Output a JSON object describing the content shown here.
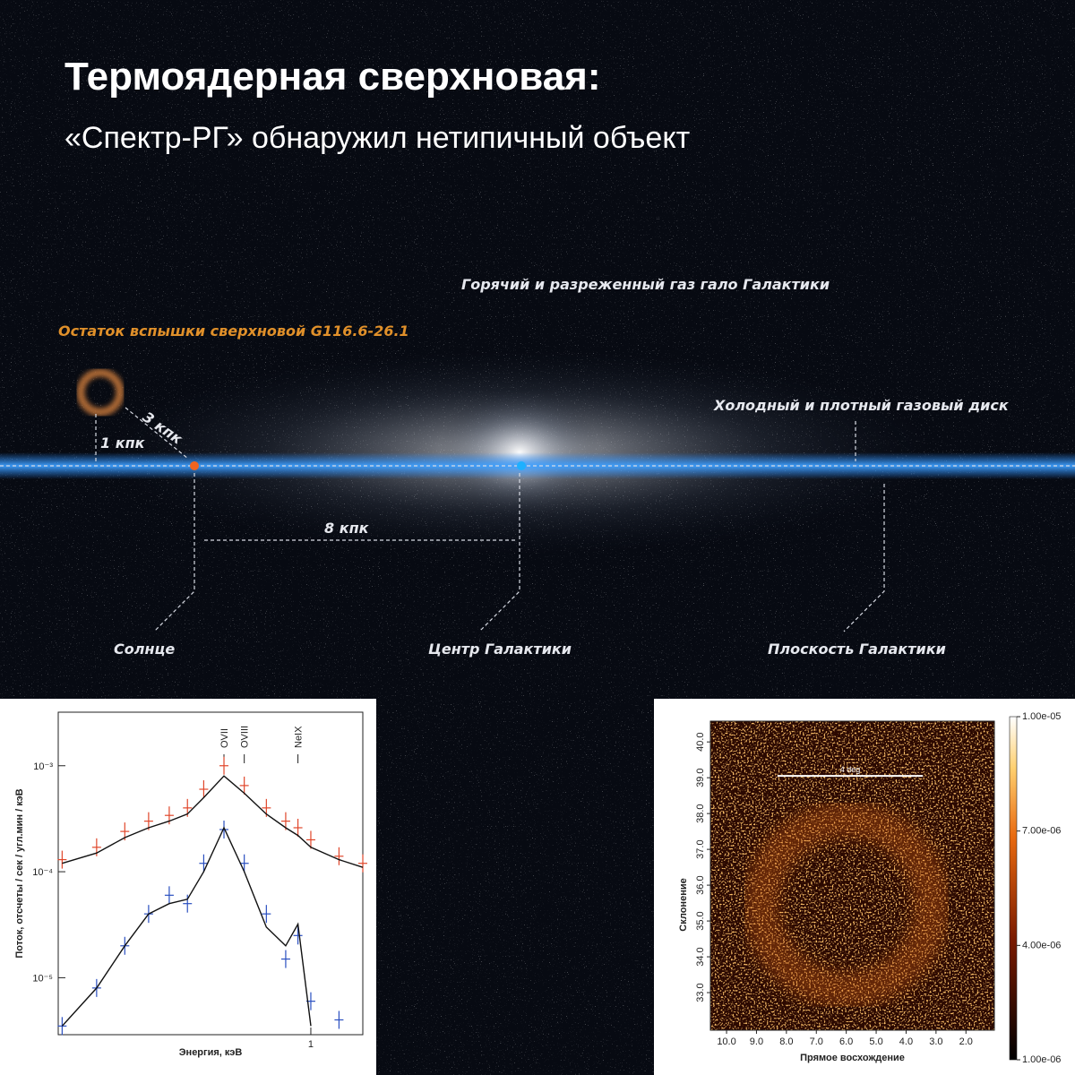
{
  "header": {
    "title": "Термоядерная сверхновая:",
    "subtitle": "«Спектр-РГ» обнаружил нетипичный объект"
  },
  "diagram": {
    "labels": {
      "halo": "Горячий и разреженный газ гало Галактики",
      "remnant": "Остаток вспышки сверхновой G116.6-26.1",
      "disk": "Холодный и плотный газовый диск",
      "sun": "Солнце",
      "center": "Центр Галактики",
      "plane": "Плоскость Галактики",
      "dist_1": "1 кпк",
      "dist_3": "3 кпк",
      "dist_8": "8 кпк"
    }
  },
  "chart_data": [
    {
      "type": "line",
      "x_label": "Энергия, кэВ",
      "y_label": "Поток, отсчеты / сек / угл.мин / кэВ",
      "x_log": true,
      "y_log": true,
      "xlim": [
        0.195,
        1.4
      ],
      "ylim": [
        2.9e-06,
        0.0032
      ],
      "xticks": [
        1
      ],
      "yticks": [
        {
          "value": 0.001,
          "label": "10⁻³"
        },
        {
          "value": 0.0001,
          "label": "10⁻⁴"
        },
        {
          "value": 1e-05,
          "label": "10⁻⁵"
        }
      ],
      "annotations": [
        {
          "label": "OVII",
          "x": 0.57
        },
        {
          "label": "OVIII",
          "x": 0.65
        },
        {
          "label": "NeIX",
          "x": 0.92
        }
      ],
      "x": [
        0.2,
        0.25,
        0.3,
        0.35,
        0.4,
        0.45,
        0.5,
        0.57,
        0.65,
        0.75,
        0.85,
        0.92,
        1.0,
        1.2,
        1.4
      ],
      "series": [
        {
          "color": "#e0462a",
          "mode": "points",
          "values": [
            0.00013,
            0.00017,
            0.00024,
            0.0003,
            0.00034,
            0.0004,
            0.0006,
            0.001,
            0.00065,
            0.0004,
            0.0003,
            0.00026,
            0.0002,
            0.00014,
            0.00012
          ]
        },
        {
          "color": "#111111",
          "mode": "line",
          "values": [
            0.00012,
            0.00015,
            0.00021,
            0.00026,
            0.0003,
            0.00035,
            0.0005,
            0.0008,
            0.00055,
            0.00035,
            0.00026,
            0.00022,
            0.00017,
            0.00013,
            0.00011
          ]
        },
        {
          "color": "#2a4fc0",
          "mode": "points",
          "values": [
            3.5e-06,
            8e-06,
            2e-05,
            4e-05,
            6e-05,
            5e-05,
            0.00012,
            0.00025,
            0.00012,
            4e-05,
            1.5e-05,
            2.5e-05,
            6e-06,
            4e-06,
            null
          ]
        },
        {
          "color": "#111111",
          "mode": "line",
          "values": [
            3.5e-06,
            8e-06,
            2e-05,
            4e-05,
            5e-05,
            5.5e-05,
            0.0001,
            0.00026,
            0.0001,
            3e-05,
            2e-05,
            3.2e-05,
            3.5e-06,
            null,
            null
          ]
        }
      ]
    },
    {
      "type": "heatmap",
      "x_label": "Прямое восхождение",
      "y_label": "Склонение",
      "xlim": [
        10.54,
        1.05
      ],
      "ylim": [
        31.95,
        40.58
      ],
      "xticks": [
        {
          "value": 10,
          "label": "10.0"
        },
        {
          "value": 9,
          "label": "9.0"
        },
        {
          "value": 8,
          "label": "8.0"
        },
        {
          "value": 7,
          "label": "7.0"
        },
        {
          "value": 6,
          "label": "6.0"
        },
        {
          "value": 5,
          "label": "5.0"
        },
        {
          "value": 4,
          "label": "4.0"
        },
        {
          "value": 3,
          "label": "3.0"
        },
        {
          "value": 2,
          "label": "2.0"
        }
      ],
      "yticks": [
        {
          "value": 33,
          "label": "33.0"
        },
        {
          "value": 34,
          "label": "34.0"
        },
        {
          "value": 35,
          "label": "35.0"
        },
        {
          "value": 36,
          "label": "36.0"
        },
        {
          "value": 37,
          "label": "37.0"
        },
        {
          "value": 38,
          "label": "38.0"
        },
        {
          "value": 39,
          "label": "39.0"
        },
        {
          "value": 40,
          "label": "40.0"
        }
      ],
      "zlim": [
        1e-06,
        1e-05
      ],
      "zticks": [
        {
          "value": 1e-05,
          "label": "1.00e-05"
        },
        {
          "value": 7e-06,
          "label": "7.00e-06"
        },
        {
          "value": 4e-06,
          "label": "4.00e-06"
        },
        {
          "value": 1e-06,
          "label": "1.00e-06"
        }
      ],
      "scale_bar": {
        "label": "4 deg",
        "x": [
          8.3,
          3.44
        ],
        "y": 39.05
      }
    }
  ]
}
